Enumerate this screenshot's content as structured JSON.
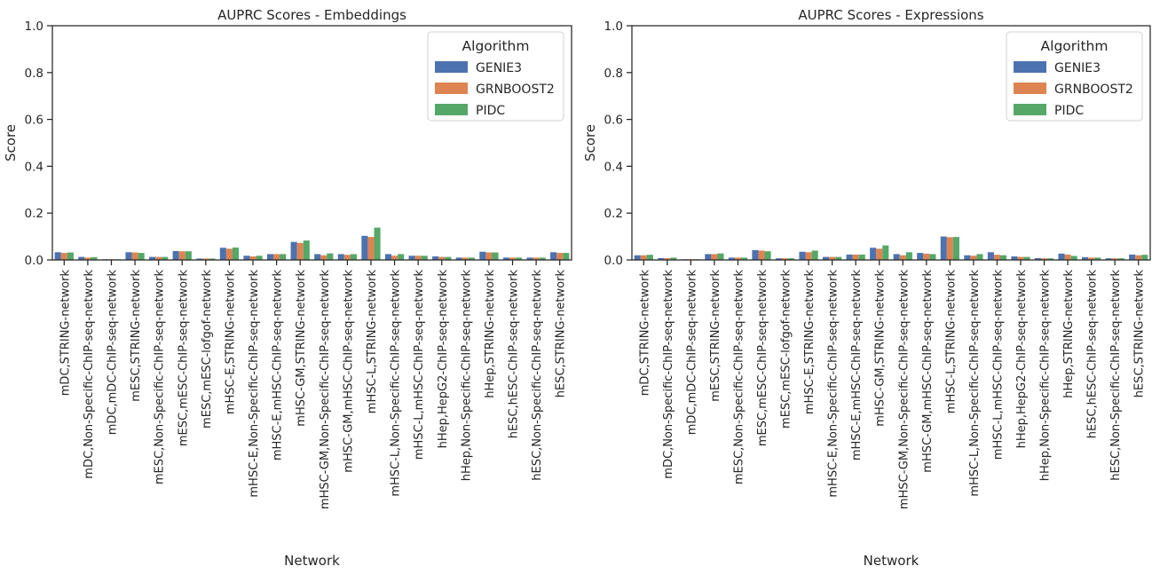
{
  "chart_data": [
    {
      "type": "bar",
      "title": "AUPRC Scores - Embeddings",
      "xlabel": "Network",
      "ylabel": "Score",
      "ylim": [
        0,
        1.0
      ],
      "yticks": [
        "0.0",
        "0.2",
        "0.4",
        "0.6",
        "0.8",
        "1.0"
      ],
      "grid": false,
      "legend": {
        "title": "Algorithm",
        "position": "top-right"
      },
      "categories": [
        "mDC,STRING-network",
        "mDC,Non-Specific-ChIP-seq-network",
        "mDC,mDC-ChIP-seq-network",
        "mESC,STRING-network",
        "mESC,Non-Specific-ChIP-seq-network",
        "mESC,mESC-ChIP-seq-network",
        "mESC,mESC-lofgof-network",
        "mHSC-E,STRING-network",
        "mHSC-E,Non-Specific-ChIP-seq-network",
        "mHSC-E,mHSC-ChIP-seq-network",
        "mHSC-GM,STRING-network",
        "mHSC-GM,Non-Specific-ChIP-seq-network",
        "mHSC-GM,mHSC-ChIP-seq-network",
        "mHSC-L,STRING-network",
        "mHSC-L,Non-Specific-ChIP-seq-network",
        "mHSC-L,mHSC-ChIP-seq-network",
        "hHep,HepG2-ChIP-seq-network",
        "hHep,Non-Specific-ChIP-seq-network",
        "hHep,STRING-network",
        "hESC,hESC-ChIP-seq-network",
        "hESC,Non-Specific-ChIP-seq-network",
        "hESC,STRING-network"
      ],
      "series": [
        {
          "name": "GENIE3",
          "color": "#4c72b0",
          "values": [
            0.033,
            0.013,
            0.003,
            0.033,
            0.013,
            0.038,
            0.006,
            0.052,
            0.018,
            0.025,
            0.077,
            0.025,
            0.025,
            0.103,
            0.025,
            0.018,
            0.015,
            0.01,
            0.035,
            0.01,
            0.01,
            0.033
          ]
        },
        {
          "name": "GRNBOOST2",
          "color": "#dd8452",
          "values": [
            0.03,
            0.01,
            0.003,
            0.032,
            0.013,
            0.037,
            0.006,
            0.048,
            0.015,
            0.025,
            0.073,
            0.02,
            0.022,
            0.098,
            0.018,
            0.018,
            0.013,
            0.01,
            0.032,
            0.01,
            0.01,
            0.03
          ]
        },
        {
          "name": "PIDC",
          "color": "#55a868",
          "values": [
            0.032,
            0.012,
            0.003,
            0.03,
            0.013,
            0.037,
            0.006,
            0.053,
            0.018,
            0.025,
            0.083,
            0.028,
            0.025,
            0.138,
            0.025,
            0.018,
            0.013,
            0.01,
            0.032,
            0.01,
            0.01,
            0.03
          ]
        }
      ]
    },
    {
      "type": "bar",
      "title": "AUPRC Scores - Expressions",
      "xlabel": "Network",
      "ylabel": "Score",
      "ylim": [
        0,
        1.0
      ],
      "yticks": [
        "0.0",
        "0.2",
        "0.4",
        "0.6",
        "0.8",
        "1.0"
      ],
      "grid": false,
      "legend": {
        "title": "Algorithm",
        "position": "top-right"
      },
      "categories": [
        "mDC,STRING-network",
        "mDC,Non-Specific-ChIP-seq-network",
        "mDC,mDC-ChIP-seq-network",
        "mESC,STRING-network",
        "mESC,Non-Specific-ChIP-seq-network",
        "mESC,mESC-ChIP-seq-network",
        "mESC,mESC-lofgof-network",
        "mHSC-E,STRING-network",
        "mHSC-E,Non-Specific-ChIP-seq-network",
        "mHSC-E,mHSC-ChIP-seq-network",
        "mHSC-GM,STRING-network",
        "mHSC-GM,Non-Specific-ChIP-seq-network",
        "mHSC-GM,mHSC-ChIP-seq-network",
        "mHSC-L,STRING-network",
        "mHSC-L,Non-Specific-ChIP-seq-network",
        "mHSC-L,mHSC-ChIP-seq-network",
        "hHep,HepG2-ChIP-seq-network",
        "hHep,Non-Specific-ChIP-seq-network",
        "hHep,STRING-network",
        "hESC,hESC-ChIP-seq-network",
        "hESC,Non-Specific-ChIP-seq-network",
        "hESC,STRING-network"
      ],
      "series": [
        {
          "name": "GENIE3",
          "color": "#4c72b0",
          "values": [
            0.02,
            0.008,
            0.003,
            0.025,
            0.01,
            0.042,
            0.007,
            0.035,
            0.013,
            0.023,
            0.052,
            0.025,
            0.03,
            0.1,
            0.02,
            0.033,
            0.015,
            0.008,
            0.027,
            0.012,
            0.007,
            0.023
          ]
        },
        {
          "name": "GRNBOOST2",
          "color": "#dd8452",
          "values": [
            0.02,
            0.008,
            0.003,
            0.025,
            0.01,
            0.04,
            0.007,
            0.033,
            0.013,
            0.023,
            0.048,
            0.02,
            0.027,
            0.097,
            0.018,
            0.022,
            0.013,
            0.007,
            0.023,
            0.01,
            0.007,
            0.02
          ]
        },
        {
          "name": "PIDC",
          "color": "#55a868",
          "values": [
            0.022,
            0.01,
            0.003,
            0.028,
            0.01,
            0.037,
            0.007,
            0.04,
            0.013,
            0.023,
            0.062,
            0.033,
            0.025,
            0.098,
            0.025,
            0.02,
            0.013,
            0.007,
            0.017,
            0.01,
            0.007,
            0.022
          ]
        }
      ]
    }
  ]
}
